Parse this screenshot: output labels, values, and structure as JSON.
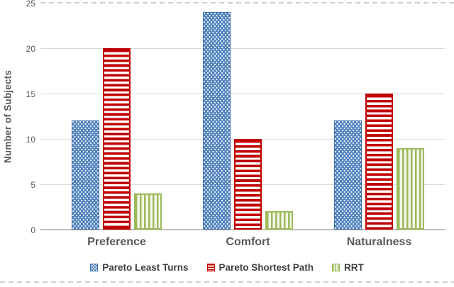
{
  "chart_data": {
    "type": "bar",
    "title": "",
    "categories": [
      "Preference",
      "Comfort",
      "Naturalness"
    ],
    "series": [
      {
        "name": "Pareto Least Turns",
        "values": [
          12,
          24,
          12
        ],
        "color": "#4e81bd",
        "pattern": "dots"
      },
      {
        "name": "Pareto Shortest Path",
        "values": [
          20,
          10,
          15
        ],
        "color": "#c00000",
        "pattern": "hlines"
      },
      {
        "name": "RRT",
        "values": [
          4,
          2,
          9
        ],
        "color": "#9bbb59",
        "pattern": "vlines",
        "bg": "#f3f5eb"
      }
    ],
    "xlabel": "",
    "ylabel": "Number of Subjects",
    "ylim": [
      0,
      25
    ],
    "yticks": [
      0,
      5,
      10,
      15,
      20,
      25
    ],
    "grid": true,
    "grid_color": "#d9d9d9",
    "axis_color": "#bfbfbf",
    "text_color": "#595959",
    "legend_position": "bottom"
  }
}
